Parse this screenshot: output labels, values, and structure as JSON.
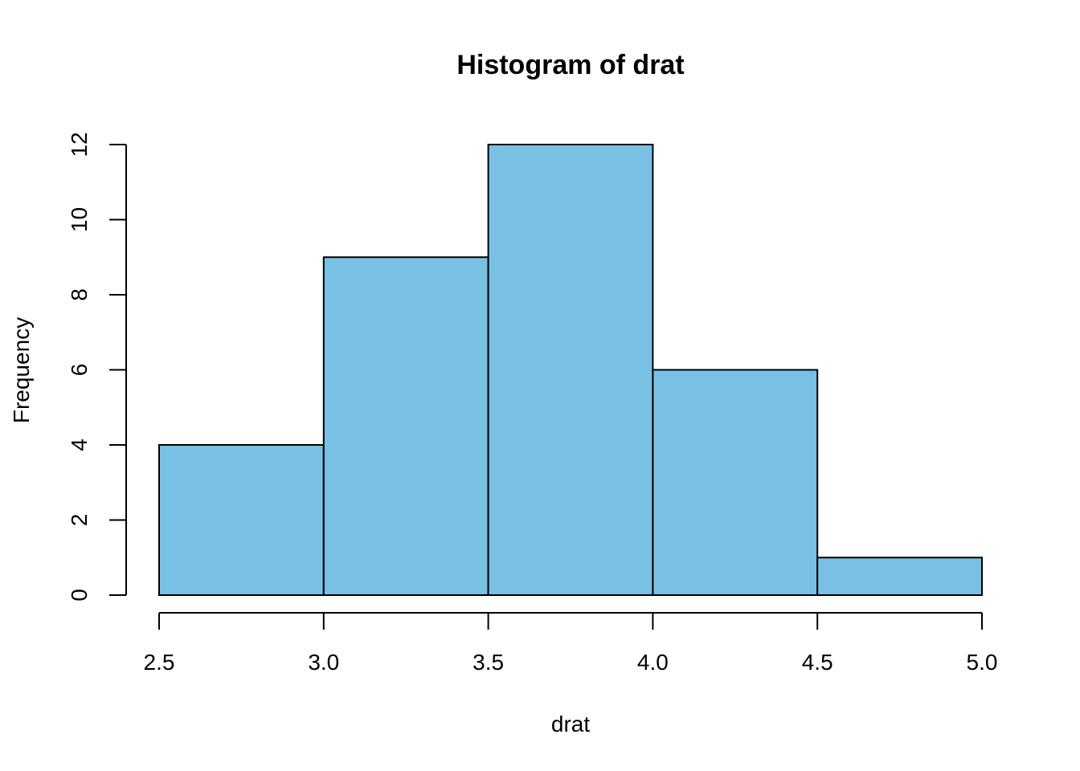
{
  "chart_data": {
    "type": "bar",
    "title": "Histogram of  drat",
    "xlabel": "drat",
    "ylabel": "Frequency",
    "bins": [
      {
        "from": 2.5,
        "to": 3.0,
        "count": 4
      },
      {
        "from": 3.0,
        "to": 3.5,
        "count": 9
      },
      {
        "from": 3.5,
        "to": 4.0,
        "count": 12
      },
      {
        "from": 4.0,
        "to": 4.5,
        "count": 6
      },
      {
        "from": 4.5,
        "to": 5.0,
        "count": 1
      }
    ],
    "xlim": [
      2.5,
      5.0
    ],
    "ylim": [
      0,
      12
    ],
    "x_ticks": [
      "2.5",
      "3.0",
      "3.5",
      "4.0",
      "4.5",
      "5.0"
    ],
    "y_ticks": [
      "0",
      "2",
      "4",
      "6",
      "8",
      "10",
      "12"
    ],
    "bar_color": "#79C1E4",
    "grid": false,
    "legend": "none"
  }
}
